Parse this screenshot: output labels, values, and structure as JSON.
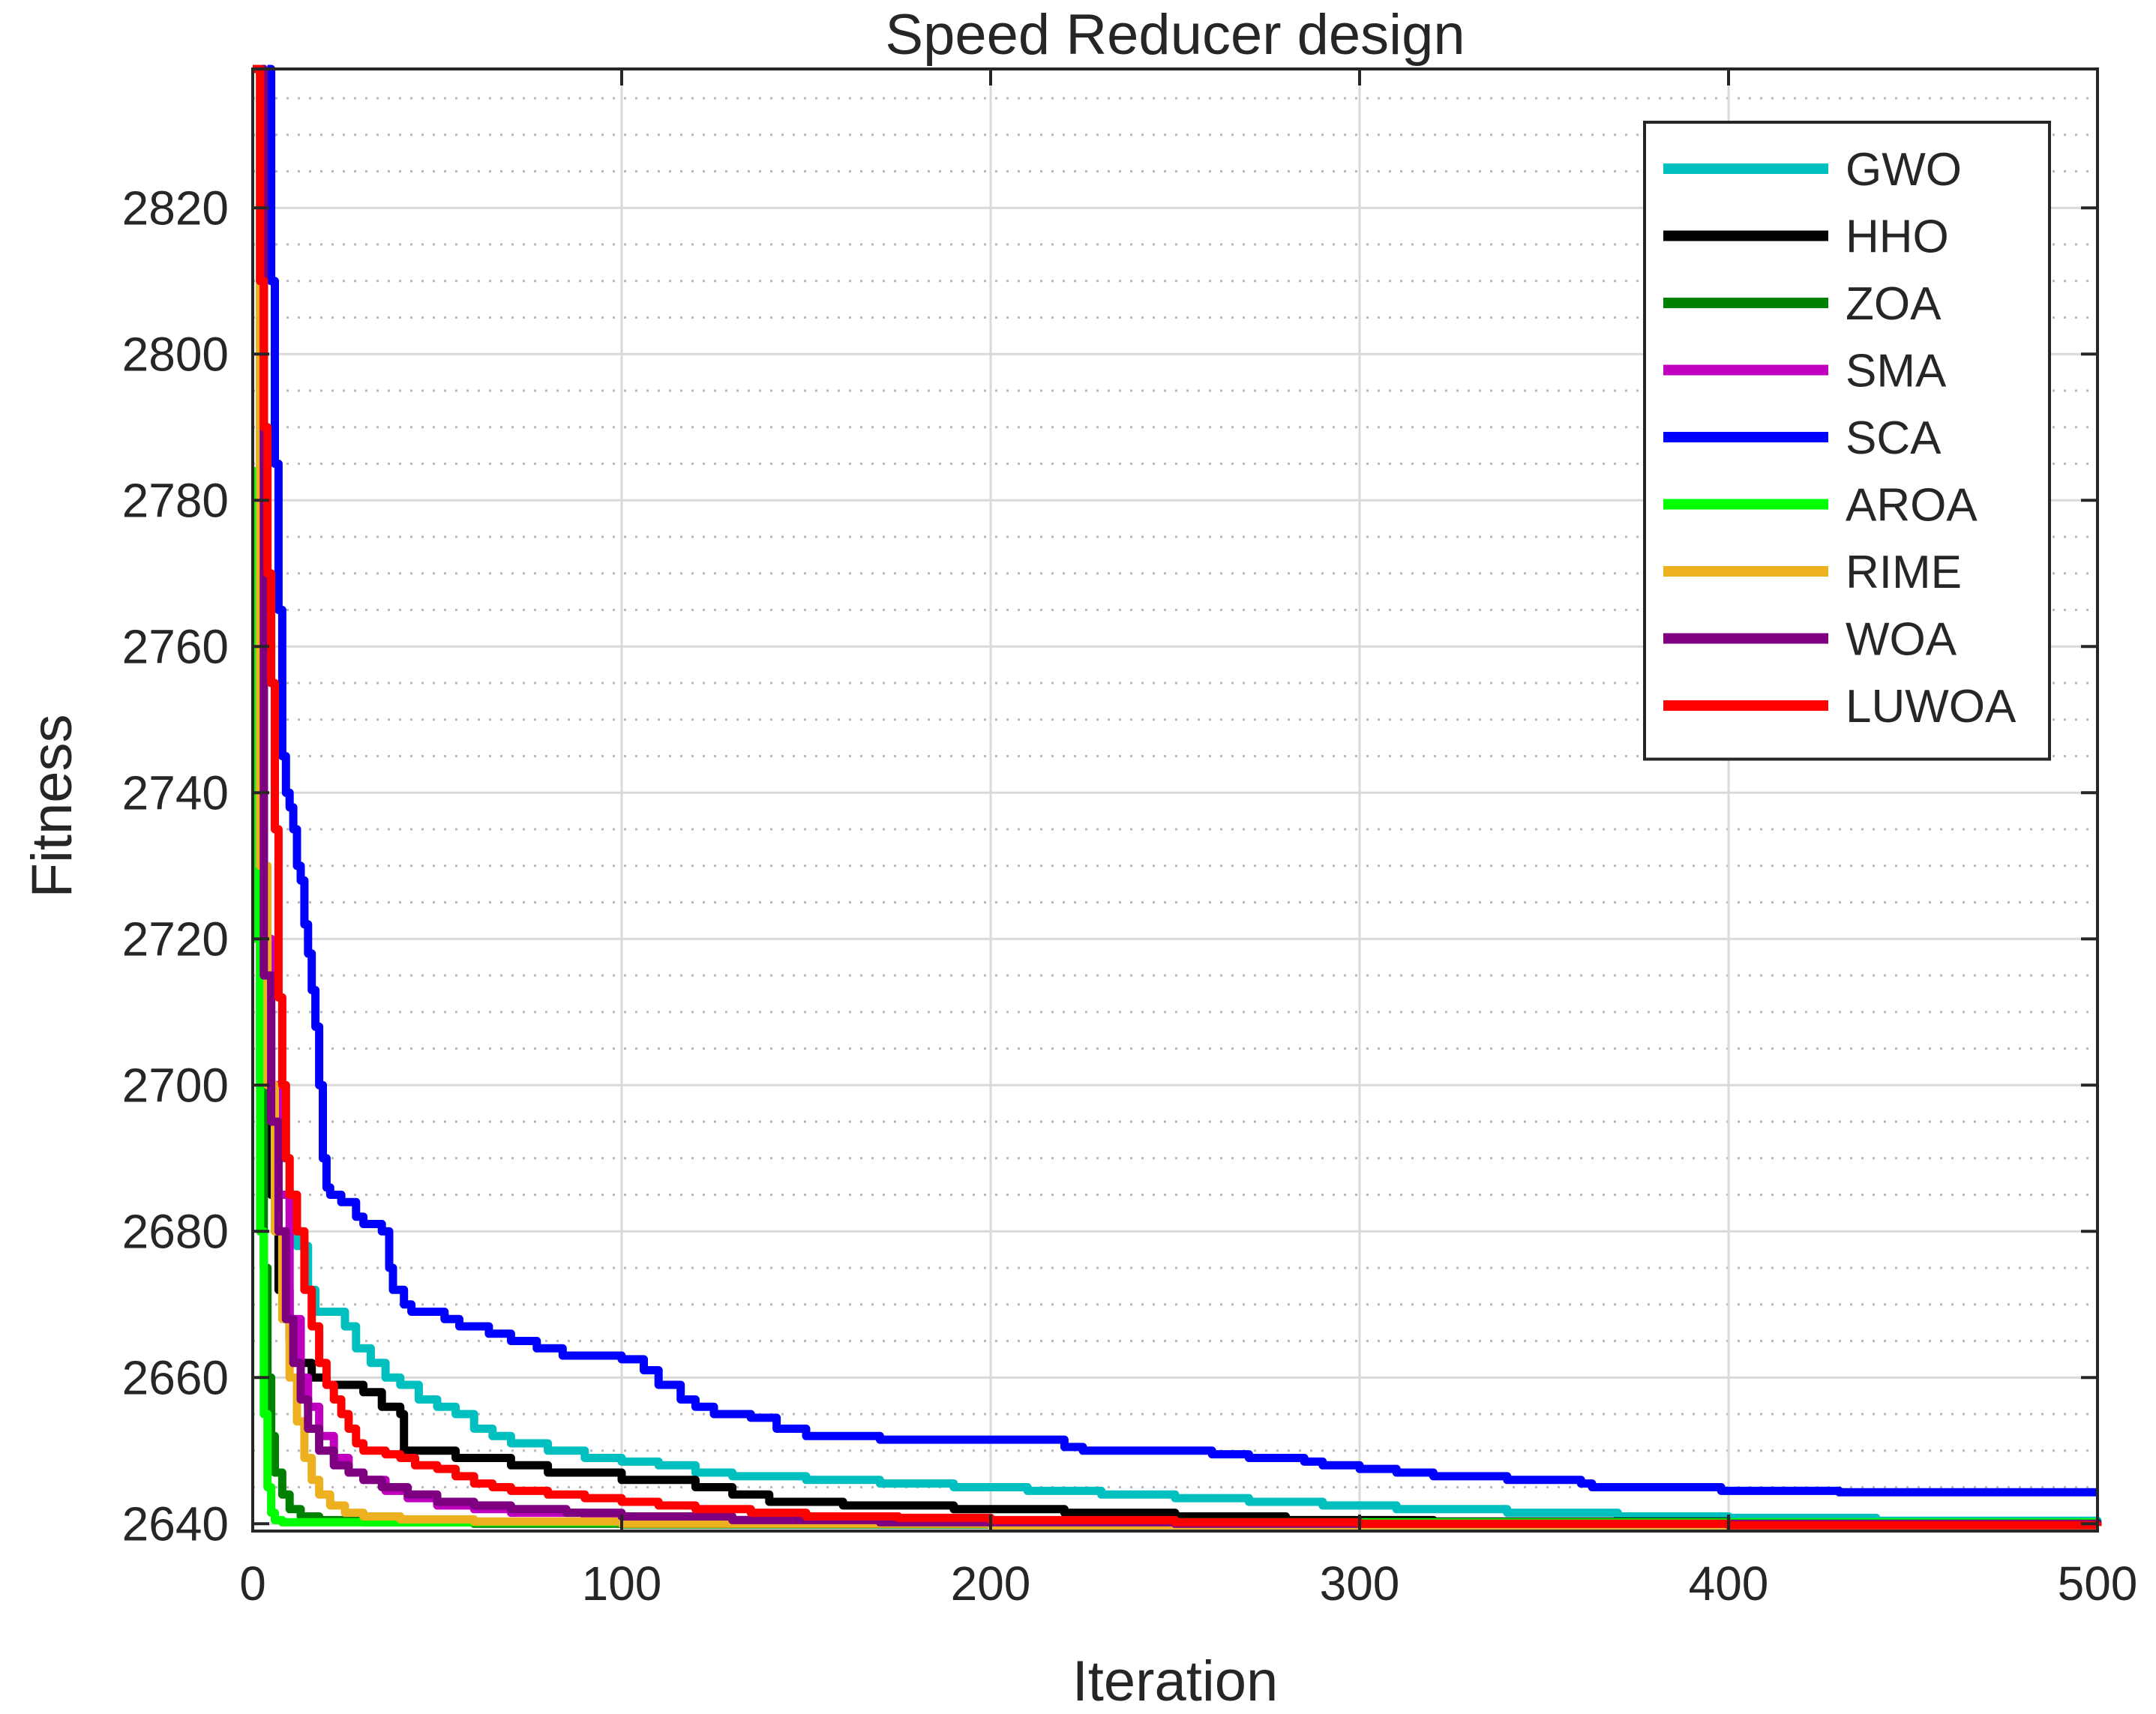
{
  "chart_data": {
    "type": "line",
    "title": "Speed Reducer design",
    "xlabel": "Iteration",
    "ylabel": "Fitness",
    "xlim": [
      0,
      500
    ],
    "ylim": [
      2639,
      2839
    ],
    "xticks": [
      0,
      100,
      200,
      300,
      400,
      500
    ],
    "yticks": [
      2640,
      2660,
      2680,
      2700,
      2720,
      2740,
      2760,
      2780,
      2800,
      2820
    ],
    "xtick_labels": [
      "0",
      "100",
      "200",
      "300",
      "400",
      "500"
    ],
    "ytick_labels": [
      "2640",
      "2660",
      "2680",
      "2700",
      "2720",
      "2740",
      "2760",
      "2780",
      "2800",
      "2820"
    ],
    "grid": true,
    "minor_grid_y": true,
    "legend_position": "top-right",
    "series": [
      {
        "name": "GWO",
        "color": "#00bfbf",
        "points": [
          [
            1,
            2839
          ],
          [
            3,
            2720
          ],
          [
            5,
            2700
          ],
          [
            7,
            2690
          ],
          [
            10,
            2683
          ],
          [
            12,
            2678
          ],
          [
            15,
            2672
          ],
          [
            17,
            2669
          ],
          [
            20,
            2669
          ],
          [
            25,
            2667
          ],
          [
            28,
            2664
          ],
          [
            32,
            2662
          ],
          [
            36,
            2660
          ],
          [
            40,
            2659
          ],
          [
            45,
            2657
          ],
          [
            50,
            2656
          ],
          [
            55,
            2655
          ],
          [
            60,
            2653
          ],
          [
            65,
            2652
          ],
          [
            70,
            2651
          ],
          [
            80,
            2650
          ],
          [
            90,
            2649
          ],
          [
            100,
            2648.5
          ],
          [
            110,
            2648
          ],
          [
            120,
            2647
          ],
          [
            130,
            2646.5
          ],
          [
            150,
            2646
          ],
          [
            170,
            2645.5
          ],
          [
            190,
            2645
          ],
          [
            210,
            2644.5
          ],
          [
            230,
            2644
          ],
          [
            250,
            2643.5
          ],
          [
            270,
            2643
          ],
          [
            290,
            2642.5
          ],
          [
            310,
            2642
          ],
          [
            340,
            2641.5
          ],
          [
            370,
            2641
          ],
          [
            400,
            2640.8
          ],
          [
            440,
            2640.4
          ],
          [
            500,
            2640.3
          ]
        ]
      },
      {
        "name": "HHO",
        "color": "#000000",
        "points": [
          [
            1,
            2839
          ],
          [
            3,
            2710
          ],
          [
            5,
            2685
          ],
          [
            7,
            2672
          ],
          [
            10,
            2665
          ],
          [
            13,
            2662
          ],
          [
            16,
            2660
          ],
          [
            20,
            2659
          ],
          [
            25,
            2659
          ],
          [
            30,
            2658
          ],
          [
            35,
            2656
          ],
          [
            40,
            2655
          ],
          [
            41,
            2650
          ],
          [
            50,
            2650
          ],
          [
            55,
            2649
          ],
          [
            62,
            2649
          ],
          [
            70,
            2648
          ],
          [
            80,
            2647
          ],
          [
            100,
            2646
          ],
          [
            120,
            2645
          ],
          [
            130,
            2644
          ],
          [
            140,
            2643
          ],
          [
            160,
            2642.5
          ],
          [
            190,
            2642
          ],
          [
            220,
            2641.5
          ],
          [
            250,
            2641
          ],
          [
            280,
            2640.5
          ],
          [
            320,
            2640.3
          ],
          [
            400,
            2640.1
          ],
          [
            500,
            2640
          ]
        ]
      },
      {
        "name": "ZOA",
        "color": "#008000",
        "points": [
          [
            1,
            2839
          ],
          [
            2,
            2700
          ],
          [
            3,
            2675
          ],
          [
            4,
            2660
          ],
          [
            5,
            2652
          ],
          [
            6,
            2647
          ],
          [
            8,
            2644
          ],
          [
            10,
            2642
          ],
          [
            13,
            2641
          ],
          [
            18,
            2640.5
          ],
          [
            30,
            2640.2
          ],
          [
            60,
            2640
          ],
          [
            100,
            2639.9
          ],
          [
            500,
            2639.8
          ]
        ]
      },
      {
        "name": "SMA",
        "color": "#bf00bf",
        "points": [
          [
            1,
            2839
          ],
          [
            3,
            2720
          ],
          [
            5,
            2700
          ],
          [
            7,
            2685
          ],
          [
            10,
            2668
          ],
          [
            13,
            2660
          ],
          [
            15,
            2656
          ],
          [
            18,
            2652
          ],
          [
            22,
            2649
          ],
          [
            26,
            2647
          ],
          [
            30,
            2646
          ],
          [
            36,
            2644.5
          ],
          [
            42,
            2643.5
          ],
          [
            50,
            2642.5
          ],
          [
            60,
            2642
          ],
          [
            70,
            2641.5
          ],
          [
            90,
            2641
          ],
          [
            120,
            2640.5
          ],
          [
            160,
            2640.2
          ],
          [
            220,
            2640
          ],
          [
            500,
            2639.8
          ]
        ]
      },
      {
        "name": "SCA",
        "color": "#0000ff",
        "points": [
          [
            4,
            2839
          ],
          [
            5,
            2810
          ],
          [
            6,
            2785
          ],
          [
            7,
            2765
          ],
          [
            8,
            2745
          ],
          [
            9,
            2740
          ],
          [
            10,
            2738
          ],
          [
            11,
            2735
          ],
          [
            12,
            2730
          ],
          [
            13,
            2728
          ],
          [
            14,
            2722
          ],
          [
            15,
            2718
          ],
          [
            16,
            2713
          ],
          [
            17,
            2708
          ],
          [
            18,
            2700
          ],
          [
            19,
            2690
          ],
          [
            20,
            2686
          ],
          [
            21,
            2685
          ],
          [
            24,
            2684
          ],
          [
            27,
            2684
          ],
          [
            28,
            2682
          ],
          [
            30,
            2681
          ],
          [
            33,
            2681
          ],
          [
            35,
            2680
          ],
          [
            37,
            2675
          ],
          [
            38,
            2672
          ],
          [
            40,
            2672
          ],
          [
            41,
            2670
          ],
          [
            43,
            2669
          ],
          [
            50,
            2669
          ],
          [
            52,
            2668
          ],
          [
            55,
            2668
          ],
          [
            56,
            2667
          ],
          [
            62,
            2667
          ],
          [
            64,
            2666
          ],
          [
            68,
            2666
          ],
          [
            70,
            2665
          ],
          [
            76,
            2665
          ],
          [
            77,
            2664
          ],
          [
            82,
            2664
          ],
          [
            84,
            2663
          ],
          [
            98,
            2663
          ],
          [
            100,
            2662.5
          ],
          [
            106,
            2661
          ],
          [
            110,
            2659
          ],
          [
            116,
            2657
          ],
          [
            120,
            2656
          ],
          [
            125,
            2655
          ],
          [
            135,
            2654.5
          ],
          [
            142,
            2653
          ],
          [
            150,
            2652
          ],
          [
            160,
            2652
          ],
          [
            170,
            2651.5
          ],
          [
            200,
            2651.5
          ],
          [
            220,
            2650.5
          ],
          [
            225,
            2650
          ],
          [
            240,
            2650
          ],
          [
            260,
            2649.5
          ],
          [
            270,
            2649
          ],
          [
            285,
            2648.5
          ],
          [
            290,
            2648
          ],
          [
            300,
            2647.5
          ],
          [
            310,
            2647
          ],
          [
            320,
            2646.5
          ],
          [
            340,
            2646
          ],
          [
            360,
            2645.5
          ],
          [
            363,
            2645
          ],
          [
            395,
            2645
          ],
          [
            398,
            2644.5
          ],
          [
            430,
            2644.3
          ],
          [
            500,
            2644.3
          ]
        ]
      },
      {
        "name": "AROA",
        "color": "#00ff00",
        "points": [
          [
            0,
            2784
          ],
          [
            1,
            2720
          ],
          [
            2,
            2680
          ],
          [
            3,
            2655
          ],
          [
            4,
            2645
          ],
          [
            5,
            2641.5
          ],
          [
            6,
            2640.5
          ],
          [
            8,
            2640.2
          ],
          [
            15,
            2640.2
          ],
          [
            100,
            2640.2
          ],
          [
            500,
            2640.2
          ]
        ]
      },
      {
        "name": "RIME",
        "color": "#edb120",
        "points": [
          [
            1,
            2839
          ],
          [
            2,
            2730
          ],
          [
            4,
            2700
          ],
          [
            6,
            2680
          ],
          [
            8,
            2668
          ],
          [
            10,
            2660
          ],
          [
            12,
            2654
          ],
          [
            14,
            2649
          ],
          [
            16,
            2646
          ],
          [
            18,
            2644
          ],
          [
            21,
            2642.5
          ],
          [
            25,
            2641.5
          ],
          [
            30,
            2641
          ],
          [
            40,
            2640.6
          ],
          [
            60,
            2640.3
          ],
          [
            100,
            2640
          ],
          [
            200,
            2639.8
          ],
          [
            500,
            2639.7
          ]
        ]
      },
      {
        "name": "WOA",
        "color": "#7e0080",
        "points": [
          [
            1,
            2839
          ],
          [
            3,
            2715
          ],
          [
            5,
            2695
          ],
          [
            7,
            2680
          ],
          [
            9,
            2668
          ],
          [
            11,
            2662
          ],
          [
            13,
            2657
          ],
          [
            15,
            2653
          ],
          [
            18,
            2650
          ],
          [
            22,
            2648
          ],
          [
            26,
            2647
          ],
          [
            30,
            2646
          ],
          [
            35,
            2645
          ],
          [
            42,
            2644
          ],
          [
            50,
            2643
          ],
          [
            60,
            2642.5
          ],
          [
            70,
            2642
          ],
          [
            85,
            2641.5
          ],
          [
            100,
            2641
          ],
          [
            130,
            2640.5
          ],
          [
            170,
            2640.2
          ],
          [
            250,
            2640
          ],
          [
            500,
            2639.8
          ]
        ]
      },
      {
        "name": "LUWOA",
        "color": "#ff0000",
        "points": [
          [
            0,
            2839
          ],
          [
            2,
            2810
          ],
          [
            3,
            2790
          ],
          [
            4,
            2770
          ],
          [
            5,
            2755
          ],
          [
            6,
            2735
          ],
          [
            7,
            2712
          ],
          [
            8,
            2700
          ],
          [
            9,
            2690
          ],
          [
            10,
            2685
          ],
          [
            12,
            2680
          ],
          [
            14,
            2672
          ],
          [
            16,
            2667
          ],
          [
            18,
            2662
          ],
          [
            20,
            2659
          ],
          [
            22,
            2657
          ],
          [
            24,
            2655
          ],
          [
            26,
            2653
          ],
          [
            28,
            2651
          ],
          [
            30,
            2650
          ],
          [
            36,
            2649.5
          ],
          [
            40,
            2649
          ],
          [
            44,
            2648
          ],
          [
            50,
            2647.5
          ],
          [
            55,
            2646.5
          ],
          [
            60,
            2645.5
          ],
          [
            65,
            2645
          ],
          [
            70,
            2644.5
          ],
          [
            80,
            2644
          ],
          [
            90,
            2643.5
          ],
          [
            100,
            2643
          ],
          [
            110,
            2642.5
          ],
          [
            120,
            2642
          ],
          [
            135,
            2641.5
          ],
          [
            150,
            2641
          ],
          [
            175,
            2640.8
          ],
          [
            200,
            2640.5
          ],
          [
            250,
            2640.2
          ],
          [
            300,
            2640
          ],
          [
            400,
            2639.8
          ],
          [
            500,
            2639.7
          ]
        ]
      }
    ]
  }
}
